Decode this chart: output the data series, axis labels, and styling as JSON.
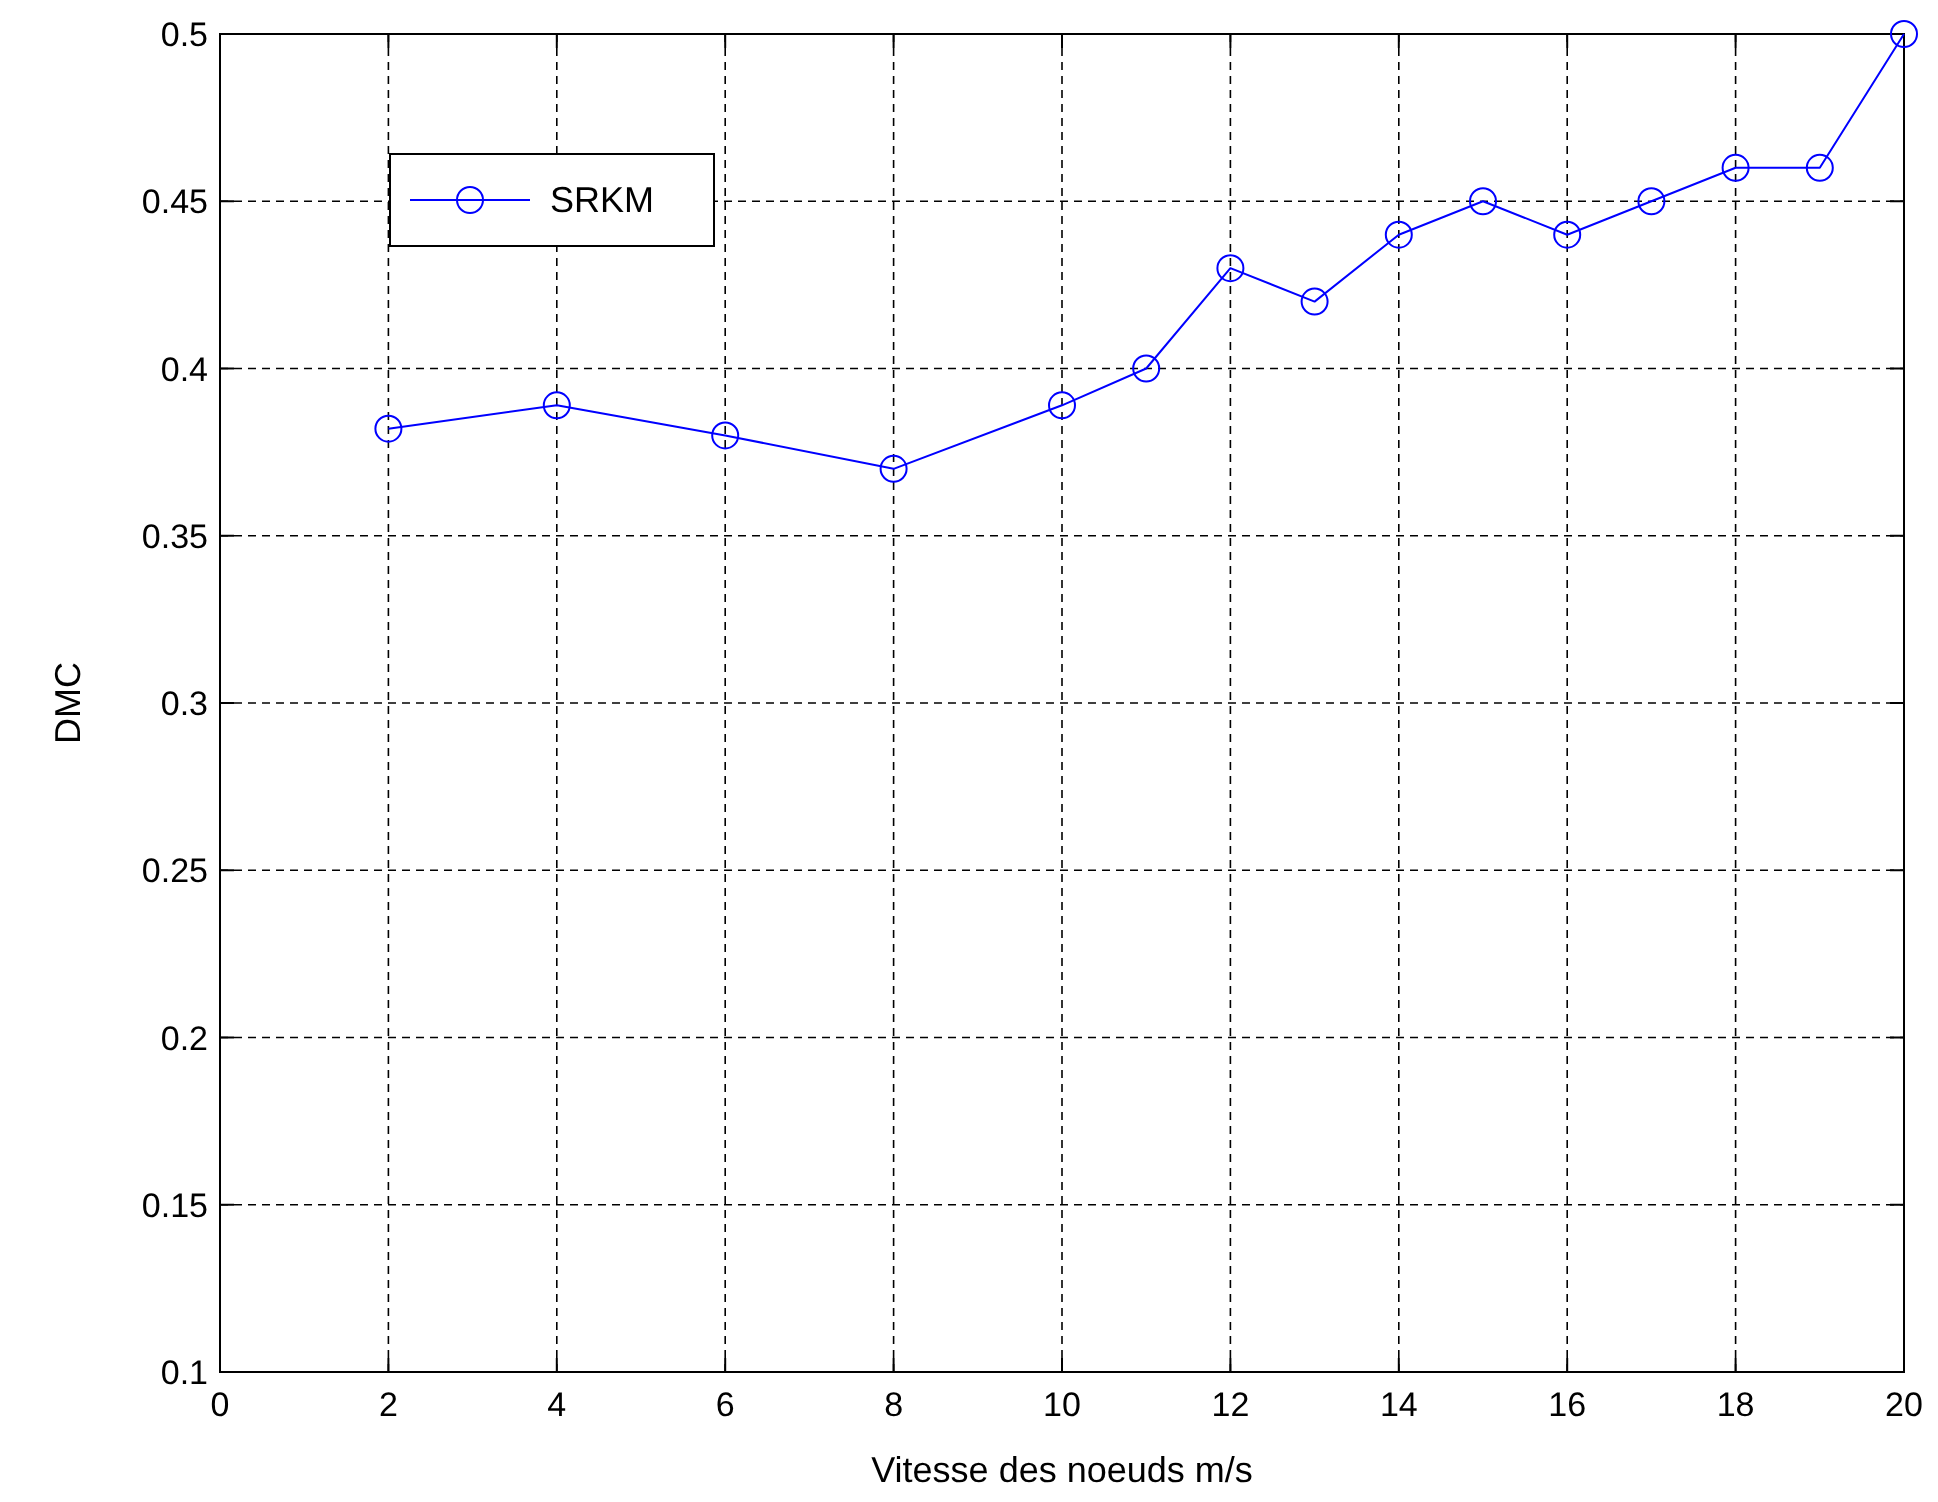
{
  "chart_data": {
    "type": "line",
    "xlabel": "Vitesse des noeuds m/s",
    "ylabel": "DMC",
    "x": [
      2,
      4,
      6,
      8,
      10,
      11,
      12,
      13,
      14,
      15,
      16,
      17,
      18,
      19,
      20
    ],
    "series": [
      {
        "name": "SRKM",
        "color": "#0000ff",
        "values": [
          0.382,
          0.389,
          0.38,
          0.37,
          0.389,
          0.4,
          0.43,
          0.42,
          0.44,
          0.45,
          0.44,
          0.45,
          0.46,
          0.46,
          0.5
        ]
      }
    ],
    "xlim": [
      0,
      20
    ],
    "xticks": [
      0,
      2,
      4,
      6,
      8,
      10,
      12,
      14,
      16,
      18,
      20
    ],
    "ylim": [
      0.1,
      0.5
    ],
    "yticks": [
      0.1,
      0.15,
      0.2,
      0.25,
      0.3,
      0.35,
      0.4,
      0.45,
      0.5
    ],
    "grid": true,
    "legend": "top left",
    "marker": "circle",
    "line_style": "solid"
  }
}
